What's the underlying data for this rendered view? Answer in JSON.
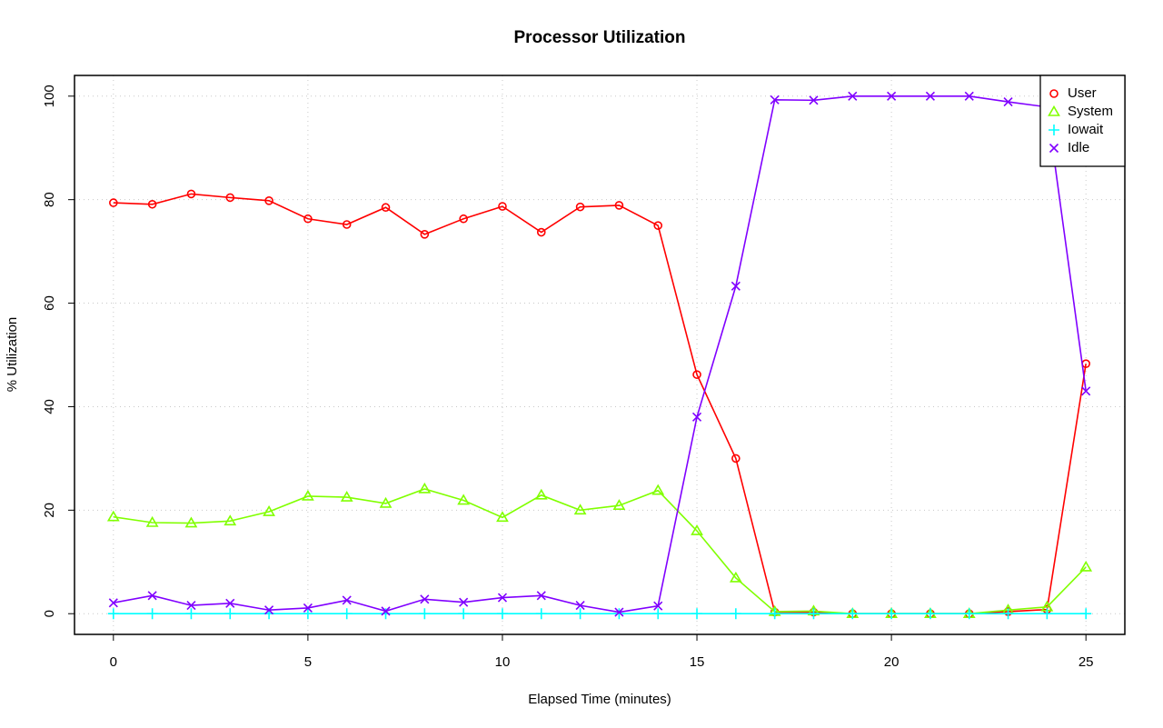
{
  "chart_data": {
    "type": "line",
    "title": "Processor Utilization",
    "x_label": "Elapsed Time (minutes)",
    "y_label": "% Utilization",
    "x": [
      0,
      1,
      2,
      3,
      4,
      5,
      6,
      7,
      8,
      9,
      10,
      11,
      12,
      13,
      14,
      15,
      16,
      17,
      18,
      19,
      20,
      21,
      22,
      23,
      24,
      25
    ],
    "series": [
      {
        "name": "User",
        "color": "#ff0000",
        "marker": "circle",
        "values": [
          79.4,
          79.1,
          81.1,
          80.4,
          79.8,
          76.3,
          75.2,
          78.5,
          73.3,
          76.3,
          78.7,
          73.7,
          78.6,
          78.9,
          75.0,
          46.2,
          30.0,
          0.3,
          0.3,
          0,
          0,
          0,
          0,
          0.4,
          0.8,
          48.3
        ]
      },
      {
        "name": "System",
        "color": "#80ff00",
        "marker": "triangle",
        "values": [
          18.7,
          17.6,
          17.5,
          17.9,
          19.7,
          22.7,
          22.5,
          21.3,
          24.1,
          21.9,
          18.6,
          22.9,
          20.0,
          20.9,
          23.8,
          16.0,
          6.9,
          0.4,
          0.5,
          0,
          0,
          0,
          0,
          0.7,
          1.3,
          9.0
        ]
      },
      {
        "name": "Iowait",
        "color": "#00ffff",
        "marker": "plus",
        "values": [
          0,
          0,
          0,
          0,
          0,
          0,
          0,
          0,
          0,
          0,
          0,
          0,
          0,
          0,
          0,
          0,
          0,
          0,
          0,
          0,
          0,
          0,
          0,
          0,
          0,
          0
        ]
      },
      {
        "name": "Idle",
        "color": "#8000ff",
        "marker": "cross",
        "values": [
          2.1,
          3.5,
          1.6,
          2.0,
          0.7,
          1.1,
          2.6,
          0.5,
          2.8,
          2.2,
          3.1,
          3.5,
          1.6,
          0.3,
          1.5,
          38.0,
          63.3,
          99.3,
          99.2,
          100,
          100,
          100,
          100,
          98.9,
          97.9,
          43.0
        ]
      }
    ],
    "xlim": [
      -1,
      26
    ],
    "ylim": [
      -4,
      104
    ],
    "xticks": [
      0,
      5,
      10,
      15,
      20,
      25
    ],
    "yticks": [
      0,
      20,
      40,
      60,
      80,
      100
    ],
    "grid": true,
    "legend_position": "top-right"
  }
}
